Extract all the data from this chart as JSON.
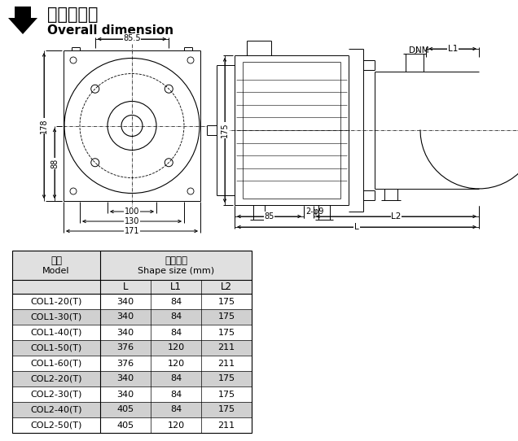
{
  "title_chinese": "安装外形图",
  "title_english": "Overall dimension",
  "table_header_chinese": "外形尺寸",
  "table_header_english": "Shape size (mm)",
  "rows": [
    [
      "COL1-20(T)",
      "340",
      "84",
      "175"
    ],
    [
      "COL1-30(T)",
      "340",
      "84",
      "175"
    ],
    [
      "COL1-40(T)",
      "340",
      "84",
      "175"
    ],
    [
      "COL1-50(T)",
      "376",
      "120",
      "211"
    ],
    [
      "COL1-60(T)",
      "376",
      "120",
      "211"
    ],
    [
      "COL2-20(T)",
      "340",
      "84",
      "175"
    ],
    [
      "COL2-30(T)",
      "340",
      "84",
      "175"
    ],
    [
      "COL2-40(T)",
      "405",
      "84",
      "175"
    ],
    [
      "COL2-50(T)",
      "405",
      "120",
      "211"
    ]
  ],
  "row_bg_shaded": [
    1,
    3,
    5,
    7
  ],
  "shade_color": "#d0d0d0",
  "header_color": "#e0e0e0"
}
